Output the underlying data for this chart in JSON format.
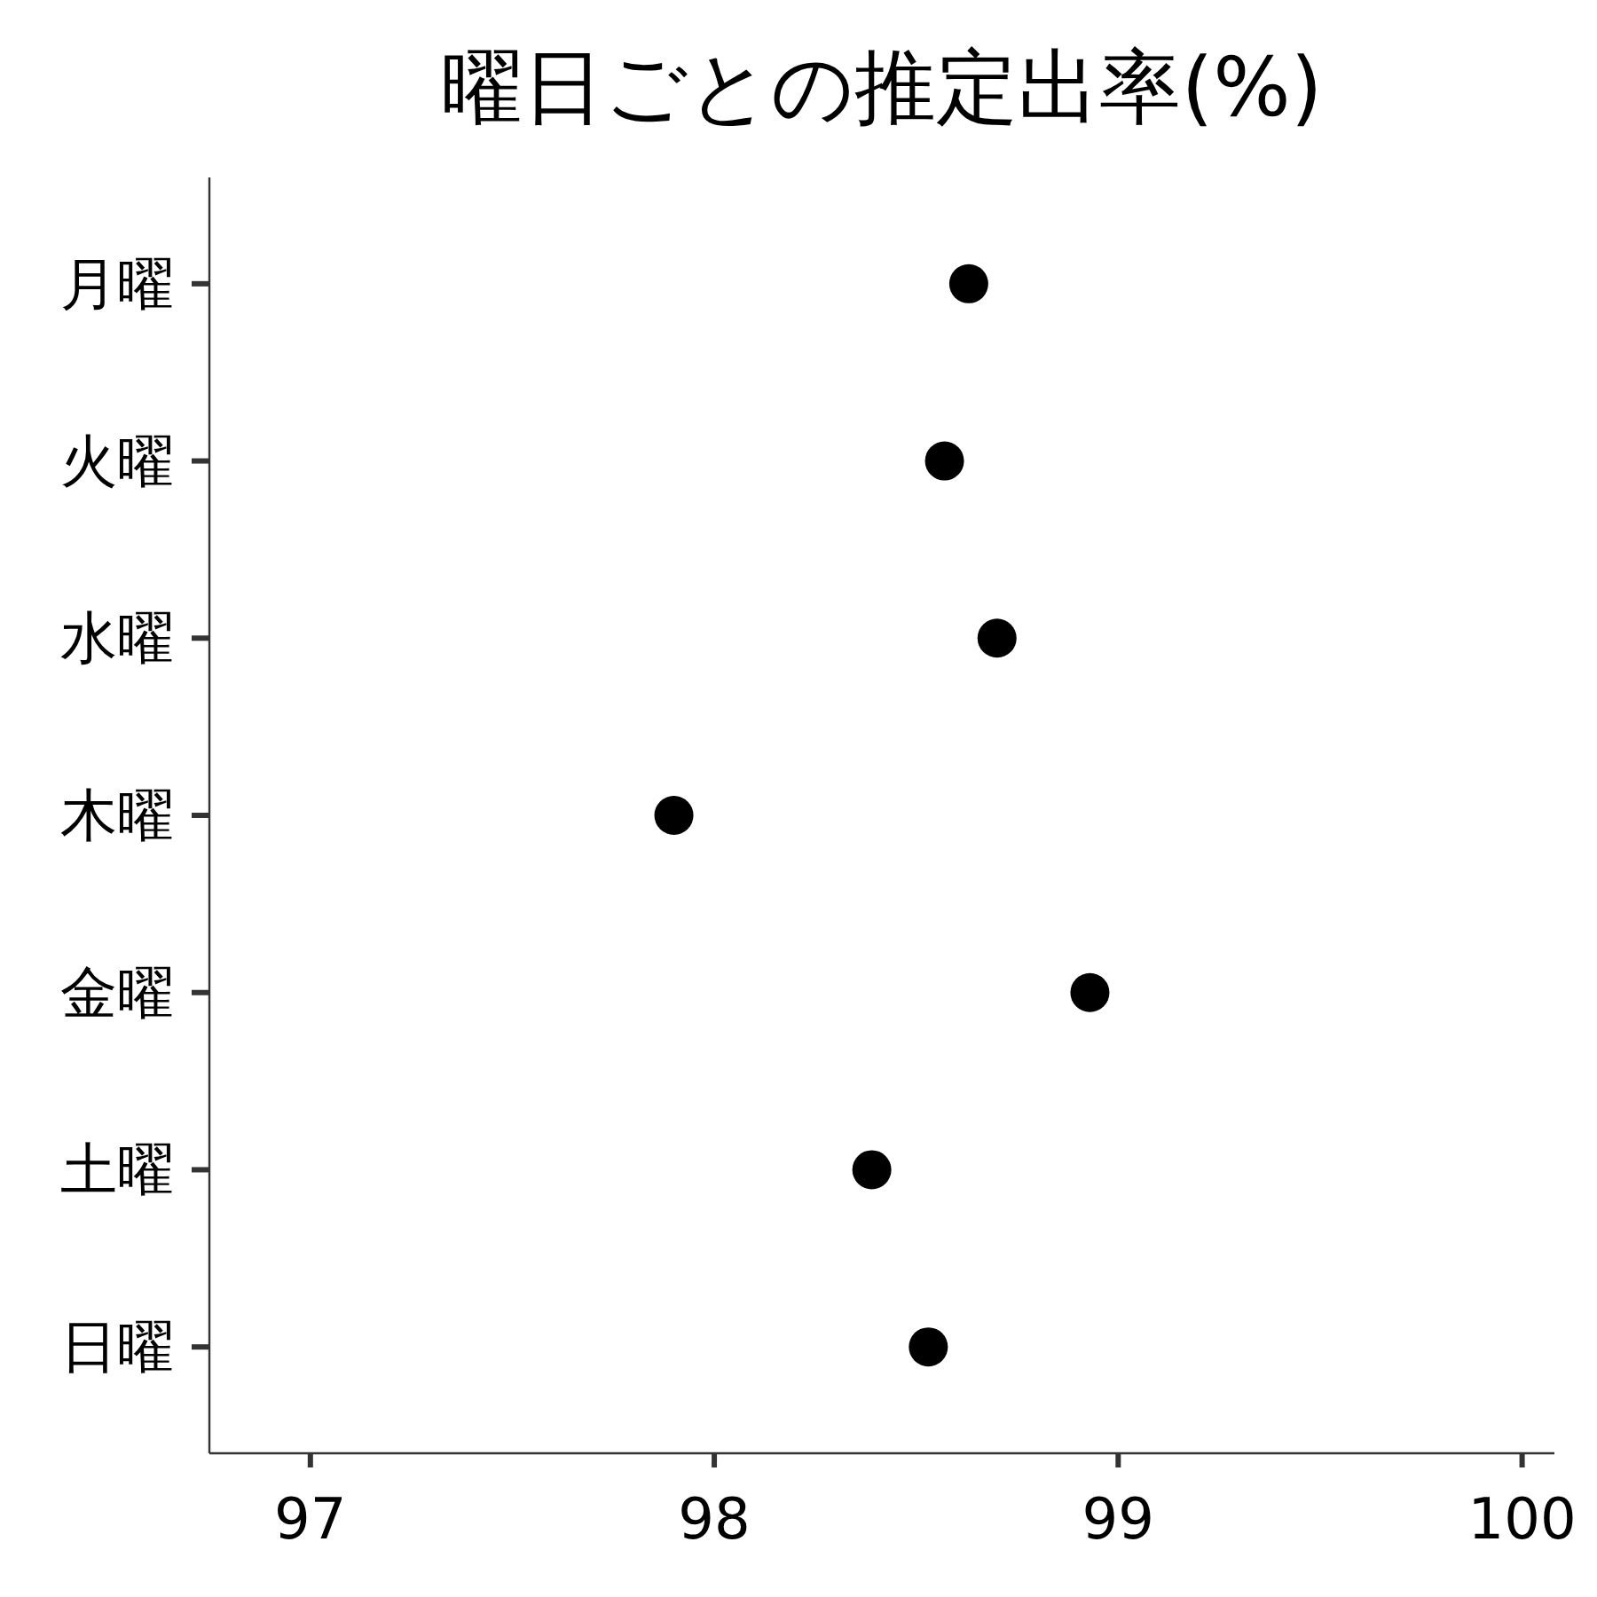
{
  "chart_data": {
    "type": "scatter",
    "title": "曜日ごとの推定出率(%)",
    "orientation": "horizontal",
    "marker": "circle",
    "grid": false,
    "categories": [
      "月曜",
      "火曜",
      "水曜",
      "木曜",
      "金曜",
      "土曜",
      "日曜"
    ],
    "series": [
      {
        "color": "#000000",
        "values": [
          98.63,
          98.57,
          98.7,
          97.9,
          98.93,
          98.39,
          98.53
        ]
      }
    ],
    "xlim": [
      96.75,
      100.08
    ],
    "xticks": [
      97,
      98,
      99,
      100
    ]
  }
}
